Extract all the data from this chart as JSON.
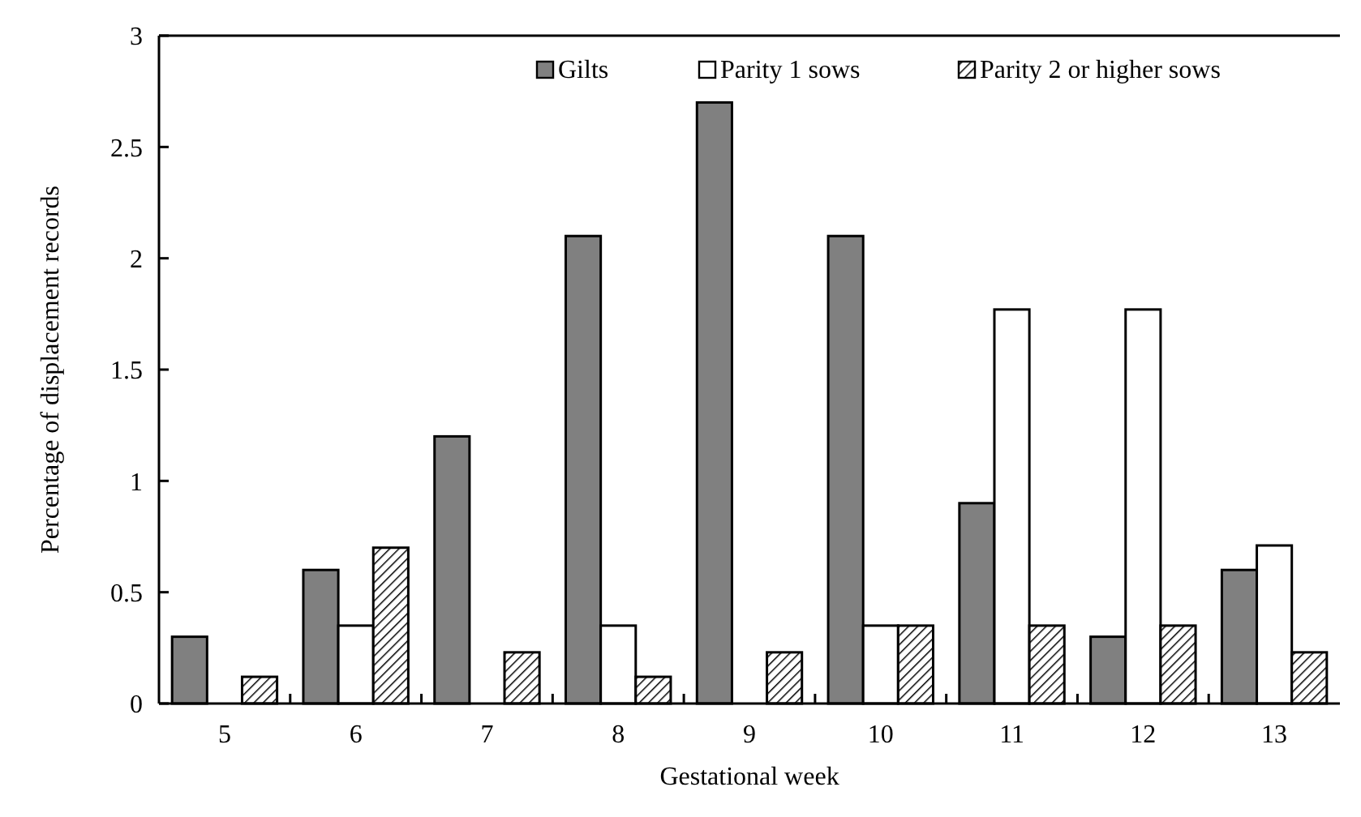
{
  "chart_data": {
    "type": "bar",
    "xlabel": "Gestational week",
    "ylabel": "Percentage of displacement records",
    "categories": [
      "5",
      "6",
      "7",
      "8",
      "9",
      "10",
      "11",
      "12",
      "13"
    ],
    "series": [
      {
        "name": "Gilts",
        "color": "#808080",
        "values": [
          0.3,
          0.6,
          1.2,
          2.1,
          2.7,
          2.1,
          0.9,
          0.3,
          0.6
        ]
      },
      {
        "name": "Parity 1 sows",
        "color": "#ffffff",
        "values": [
          0,
          0.35,
          0,
          0.35,
          0,
          0.35,
          1.77,
          1.77,
          0.71
        ]
      },
      {
        "name": "Parity 2 or higher sows",
        "color": "#000000",
        "values": [
          0.12,
          0.7,
          0.23,
          0.12,
          0.23,
          0.35,
          0.35,
          0.35,
          0.23
        ]
      }
    ],
    "ylim": [
      0,
      3
    ],
    "yticks": [
      0,
      0.5,
      1,
      1.5,
      2,
      2.5,
      3
    ],
    "grid": false,
    "legend": "top right"
  }
}
